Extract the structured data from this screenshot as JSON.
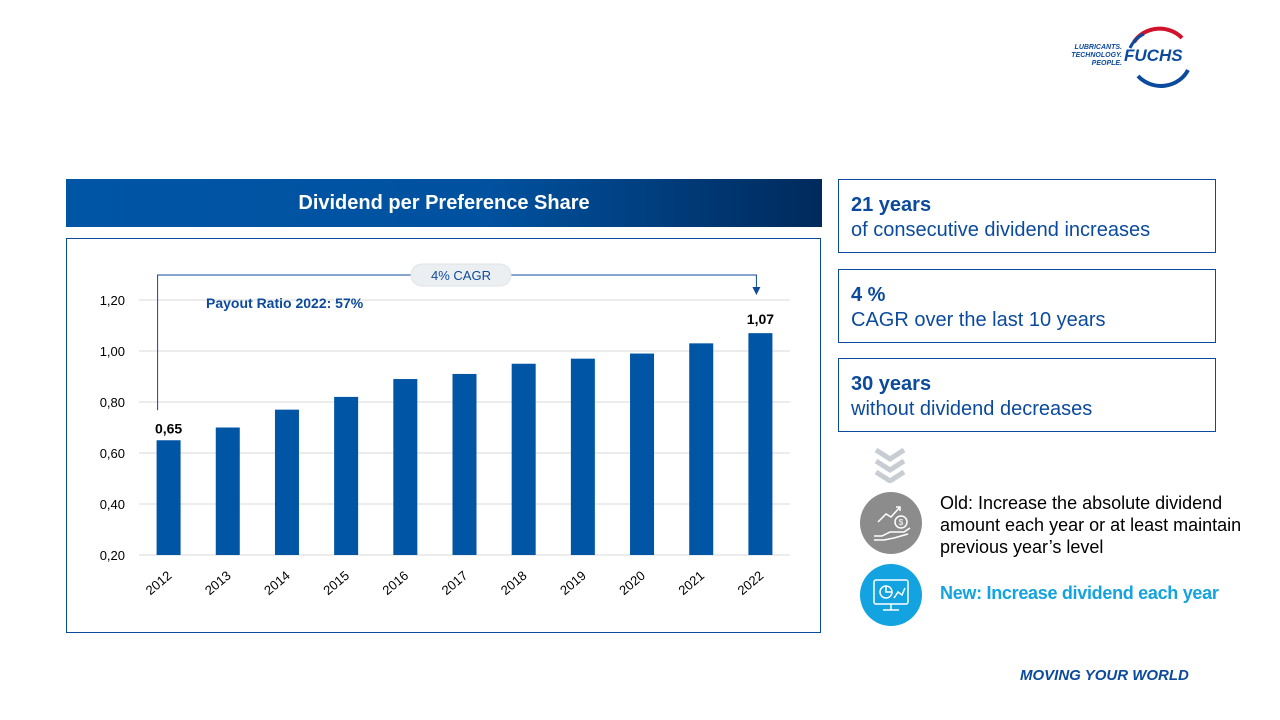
{
  "logo": {
    "tagline": [
      "LUBRICANTS.",
      "TECHNOLOGY.",
      "PEOPLE."
    ],
    "wordmark": "FUCHS"
  },
  "chart_header": "Dividend per Preference Share",
  "chart_data": {
    "type": "bar",
    "categories": [
      "2012",
      "2013",
      "2014",
      "2015",
      "2016",
      "2017",
      "2018",
      "2019",
      "2020",
      "2021",
      "2022"
    ],
    "values": [
      0.65,
      0.7,
      0.77,
      0.82,
      0.89,
      0.91,
      0.95,
      0.97,
      0.99,
      1.03,
      1.07
    ],
    "ylim": [
      0.2,
      1.2
    ],
    "yticks": [
      "0,20",
      "0,40",
      "0,60",
      "0,80",
      "1,00",
      "1,20"
    ],
    "ytick_values": [
      0.2,
      0.4,
      0.6,
      0.8,
      1.0,
      1.2
    ],
    "data_labels": {
      "first": "0,65",
      "last": "1,07"
    },
    "annotation_payout": "Payout Ratio 2022: 57%",
    "annotation_cagr": "4% CAGR",
    "grid": true,
    "bar_color": "#0055a5"
  },
  "kpis": [
    {
      "big": "21 years",
      "small": "of consecutive dividend increases"
    },
    {
      "big": "4 %",
      "small": "CAGR over the last 10 years"
    },
    {
      "big": "30 years",
      "small": "without dividend decreases"
    }
  ],
  "policy": {
    "old": "Old: Increase the absolute dividend amount each year or at least maintain previous year’s level",
    "new": "New: Increase dividend each year",
    "old_icon": "hand-coin-icon",
    "new_icon": "monitor-chart-icon"
  },
  "footer": "MOVING YOUR WORLD",
  "colors": {
    "brand_blue": "#0b4a9c",
    "accent_cyan": "#12a3e0",
    "grey": "#8c8c8c"
  }
}
